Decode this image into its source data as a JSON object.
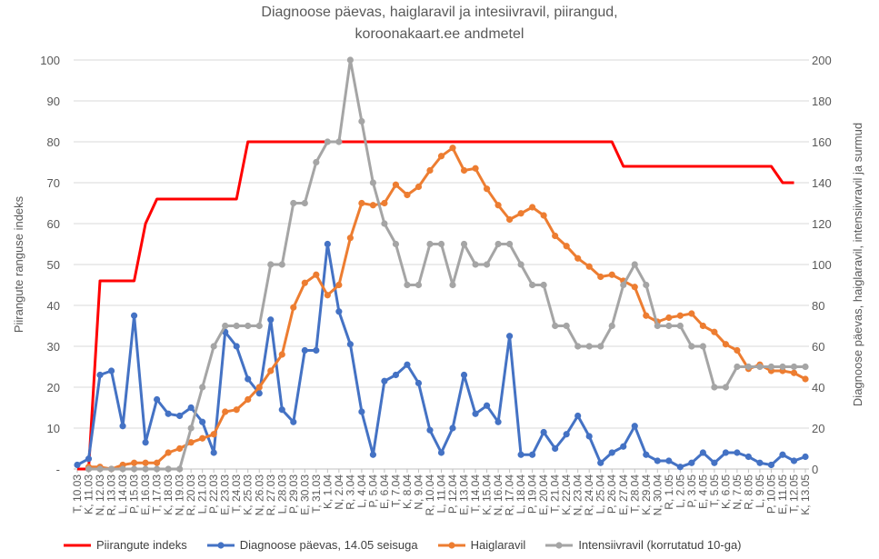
{
  "chart_data": {
    "type": "line",
    "title_line1": "Diagnoose päevas, haiglaravil ja intesiivravil, piirangud,",
    "title_line2": "koroonakaart.ee andmetel",
    "ylabel_left": "Piirangute ranguse indeks",
    "ylabel_right": "Diagnoose päevas, haiglaravil, intensiivravil ja surmud",
    "ylim_left": [
      0,
      100
    ],
    "ylim_right": [
      0,
      200
    ],
    "left_ticks": [
      "-",
      "10",
      "20",
      "30",
      "40",
      "50",
      "60",
      "70",
      "80",
      "90",
      "100"
    ],
    "right_ticks": [
      "0",
      "20",
      "40",
      "60",
      "80",
      "100",
      "120",
      "140",
      "160",
      "180",
      "200"
    ],
    "grid": true,
    "legend_position": "bottom",
    "categories": [
      "T, 10.03",
      "K, 11.03",
      "N, 12.03",
      "R, 13.03",
      "L, 14.03",
      "P, 15.03",
      "E, 16.03",
      "T, 17.03",
      "K, 18.03",
      "N, 19.03",
      "R, 20.03",
      "L, 21.03",
      "P, 22.03",
      "E, 23.03",
      "T, 24.03",
      "K, 25.03",
      "N, 26.03",
      "R, 27.03",
      "L, 28.03",
      "P, 29.03",
      "E, 30.03",
      "T, 31.03",
      "K, 1.04",
      "N, 2.04",
      "R, 3.04",
      "L, 4.04",
      "P, 5.04",
      "E, 6.04",
      "T, 7.04",
      "K, 8.04",
      "N, 9.04",
      "R, 10.04",
      "L, 11.04",
      "P, 12.04",
      "E, 13.04",
      "T, 14.04",
      "K, 15.04",
      "N, 16.04",
      "R, 17.04",
      "L, 18.04",
      "P, 19.04",
      "E, 20.04",
      "T, 21.04",
      "K, 22.04",
      "N, 23.04",
      "R, 24.04",
      "L, 25.04",
      "P, 26.04",
      "E, 27.04",
      "T, 28.04",
      "K, 29.04",
      "N, 30.04",
      "R, 1.05",
      "L, 2.05",
      "P, 3.05",
      "E, 4.05",
      "T, 5.05",
      "K, 6.05",
      "N, 7.05",
      "R, 8.05",
      "L, 9.05",
      "P, 10.05",
      "E, 11.05",
      "T, 12.05",
      "K, 13.05"
    ],
    "series": [
      {
        "name": "Piirangute indeks",
        "axis": "left",
        "color": "#FF0000",
        "markers": false,
        "values": [
          0,
          0,
          46,
          46,
          46,
          46,
          60,
          66,
          66,
          66,
          66,
          66,
          66,
          66,
          66,
          80,
          80,
          80,
          80,
          80,
          80,
          80,
          80,
          80,
          80,
          80,
          80,
          80,
          80,
          80,
          80,
          80,
          80,
          80,
          80,
          80,
          80,
          80,
          80,
          80,
          80,
          80,
          80,
          80,
          80,
          80,
          80,
          80,
          74,
          74,
          74,
          74,
          74,
          74,
          74,
          74,
          74,
          74,
          74,
          74,
          74,
          74,
          70,
          70,
          null
        ]
      },
      {
        "name": "Diagnoose päevas, 14.05 seisuga",
        "axis": "right",
        "color": "#4472C4",
        "markers": true,
        "values": [
          2,
          5,
          46,
          48,
          21,
          75,
          13,
          34,
          27,
          26,
          30,
          23,
          8,
          67,
          60,
          44,
          37,
          73,
          29,
          23,
          58,
          58,
          110,
          77,
          61,
          28,
          7,
          43,
          46,
          51,
          42,
          19,
          8,
          20,
          46,
          27,
          31,
          23,
          65,
          7,
          7,
          18,
          10,
          17,
          26,
          16,
          3,
          8,
          11,
          21,
          7,
          4,
          4,
          1,
          3,
          8,
          3,
          8,
          8,
          6,
          3,
          2,
          7,
          4,
          6
        ]
      },
      {
        "name": "Haiglaravil",
        "axis": "right",
        "color": "#ED7D31",
        "markers": true,
        "values": [
          null,
          1,
          1,
          0,
          2,
          3,
          3,
          3,
          8,
          10,
          13,
          15,
          17,
          28,
          29,
          34,
          40,
          48,
          56,
          79,
          91,
          95,
          85,
          90,
          113,
          130,
          129,
          130,
          139,
          134,
          138,
          146,
          153,
          157,
          146,
          147,
          137,
          129,
          122,
          125,
          128,
          124,
          114,
          109,
          103,
          99,
          94,
          95,
          92,
          89,
          75,
          72,
          74,
          75,
          76,
          70,
          67,
          61,
          58,
          49,
          51,
          48,
          48,
          47,
          44
        ]
      },
      {
        "name": "Intensiivravil  (korrutatud 10-ga)",
        "axis": "right",
        "color": "#A5A5A5",
        "markers": true,
        "values": [
          null,
          0,
          0,
          0,
          0,
          0,
          0,
          0,
          0,
          0,
          20,
          40,
          60,
          70,
          70,
          70,
          70,
          100,
          100,
          130,
          130,
          150,
          160,
          160,
          200,
          170,
          140,
          120,
          110,
          90,
          90,
          110,
          110,
          90,
          110,
          100,
          100,
          110,
          110,
          100,
          90,
          90,
          70,
          70,
          60,
          60,
          60,
          70,
          90,
          100,
          90,
          70,
          70,
          70,
          60,
          60,
          40,
          40,
          50,
          50,
          50,
          50,
          50,
          50,
          50
        ]
      }
    ]
  }
}
